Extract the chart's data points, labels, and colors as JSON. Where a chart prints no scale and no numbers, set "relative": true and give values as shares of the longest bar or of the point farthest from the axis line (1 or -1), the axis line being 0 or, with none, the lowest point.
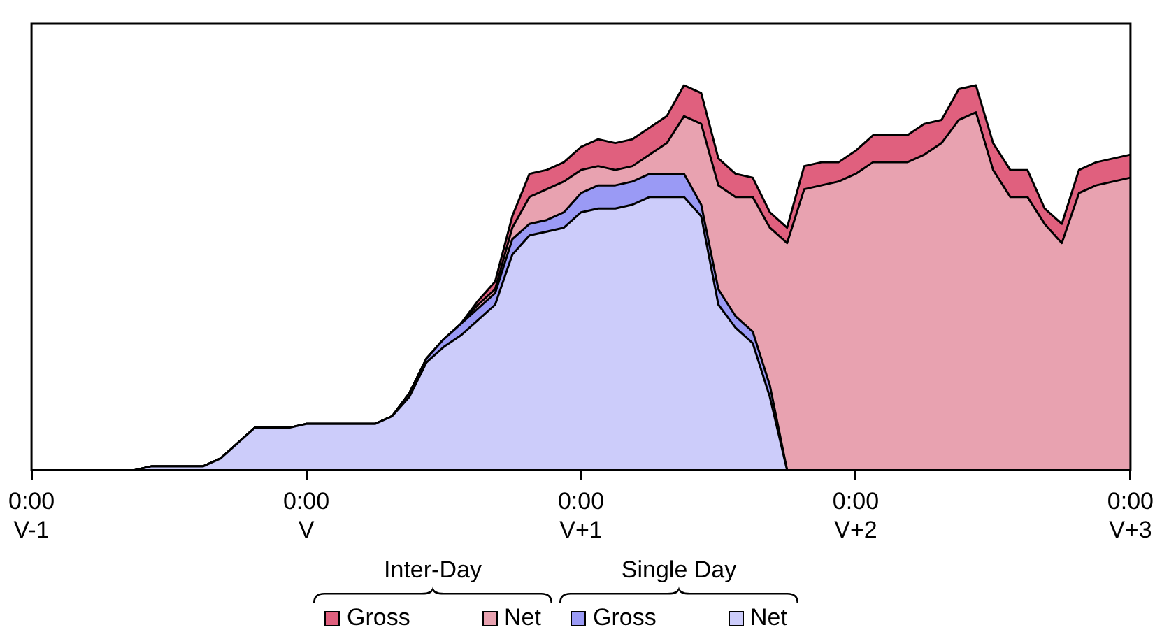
{
  "chart_data": {
    "type": "area",
    "stacked": true,
    "relative": true,
    "grid": false,
    "legend": "bottom",
    "marker": "none",
    "line_style": "solid",
    "categories": [
      "0:00\nV-1",
      null,
      null,
      null,
      null,
      null,
      null,
      null,
      null,
      null,
      null,
      null,
      null,
      null,
      null,
      null,
      "0:00\nV",
      null,
      null,
      null,
      null,
      null,
      null,
      null,
      null,
      null,
      null,
      null,
      null,
      null,
      null,
      null,
      "0:00\nV+1",
      null,
      null,
      null,
      null,
      null,
      null,
      null,
      null,
      null,
      null,
      null,
      null,
      null,
      null,
      null,
      "0:00\nV+2",
      null,
      null,
      null,
      null,
      null,
      null,
      null,
      null,
      null,
      null,
      null,
      null,
      null,
      null,
      null,
      "0:00\nV+3"
    ],
    "annotations": [
      "Inter-Day",
      "Single Day"
    ],
    "series": [
      {
        "name": "Net",
        "color": "#ccccfa",
        "values": [
          0,
          0,
          0,
          0,
          0,
          0,
          0,
          0.01,
          0.01,
          0.01,
          0.01,
          0.03,
          0.07,
          0.11,
          0.11,
          0.11,
          0.12,
          0.12,
          0.12,
          0.12,
          0.12,
          0.14,
          0.19,
          0.28,
          0.32,
          0.35,
          0.39,
          0.43,
          0.56,
          0.61,
          0.62,
          0.63,
          0.67,
          0.68,
          0.68,
          0.69,
          0.71,
          0.71,
          0.71,
          0.66,
          0.43,
          0.37,
          0.33,
          0.19,
          0,
          0,
          0,
          0,
          0,
          0,
          0,
          0,
          0,
          0,
          0,
          0,
          0,
          0,
          0,
          0,
          0,
          0,
          0,
          0,
          0
        ]
      },
      {
        "name": "Gross",
        "color": "#9a9af5",
        "values": [
          0,
          0,
          0,
          0,
          0,
          0,
          0,
          0,
          0,
          0,
          0,
          0,
          0,
          0,
          0,
          0,
          0,
          0,
          0,
          0,
          0,
          0,
          0.01,
          0.01,
          0.02,
          0.03,
          0.03,
          0.03,
          0.04,
          0.03,
          0.03,
          0.04,
          0.05,
          0.06,
          0.06,
          0.06,
          0.06,
          0.06,
          0.06,
          0.03,
          0.04,
          0.03,
          0.03,
          0.03,
          0,
          0,
          0,
          0,
          0,
          0,
          0,
          0,
          0,
          0,
          0,
          0,
          0,
          0,
          0,
          0,
          0,
          0,
          0,
          0,
          0
        ]
      },
      {
        "name": "Net",
        "color": "#e8a2b0",
        "values": [
          0,
          0,
          0,
          0,
          0,
          0,
          0,
          0,
          0,
          0,
          0,
          0,
          0,
          0,
          0,
          0,
          0,
          0,
          0,
          0,
          0,
          0,
          0,
          0,
          0,
          0,
          0.01,
          0.01,
          0.03,
          0.07,
          0.08,
          0.08,
          0.06,
          0.05,
          0.04,
          0.04,
          0.05,
          0.08,
          0.15,
          0.21,
          0.27,
          0.31,
          0.35,
          0.41,
          0.59,
          0.73,
          0.74,
          0.75,
          0.77,
          0.8,
          0.8,
          0.8,
          0.82,
          0.85,
          0.91,
          0.93,
          0.78,
          0.71,
          0.71,
          0.64,
          0.59,
          0.72,
          0.74,
          0.75,
          0.76
        ]
      },
      {
        "name": "Gross",
        "color": "#e0607e",
        "values": [
          0,
          0,
          0,
          0,
          0,
          0,
          0,
          0,
          0,
          0,
          0,
          0,
          0,
          0,
          0,
          0,
          0,
          0,
          0,
          0,
          0,
          0,
          0,
          0,
          0,
          0,
          0.01,
          0.02,
          0.03,
          0.06,
          0.05,
          0.05,
          0.06,
          0.07,
          0.07,
          0.07,
          0.07,
          0.07,
          0.08,
          0.08,
          0.07,
          0.06,
          0.05,
          0.04,
          0.04,
          0.06,
          0.06,
          0.05,
          0.06,
          0.07,
          0.07,
          0.07,
          0.08,
          0.06,
          0.08,
          0.07,
          0.07,
          0.07,
          0.07,
          0.04,
          0.05,
          0.06,
          0.06,
          0.06,
          0.06
        ]
      }
    ]
  }
}
